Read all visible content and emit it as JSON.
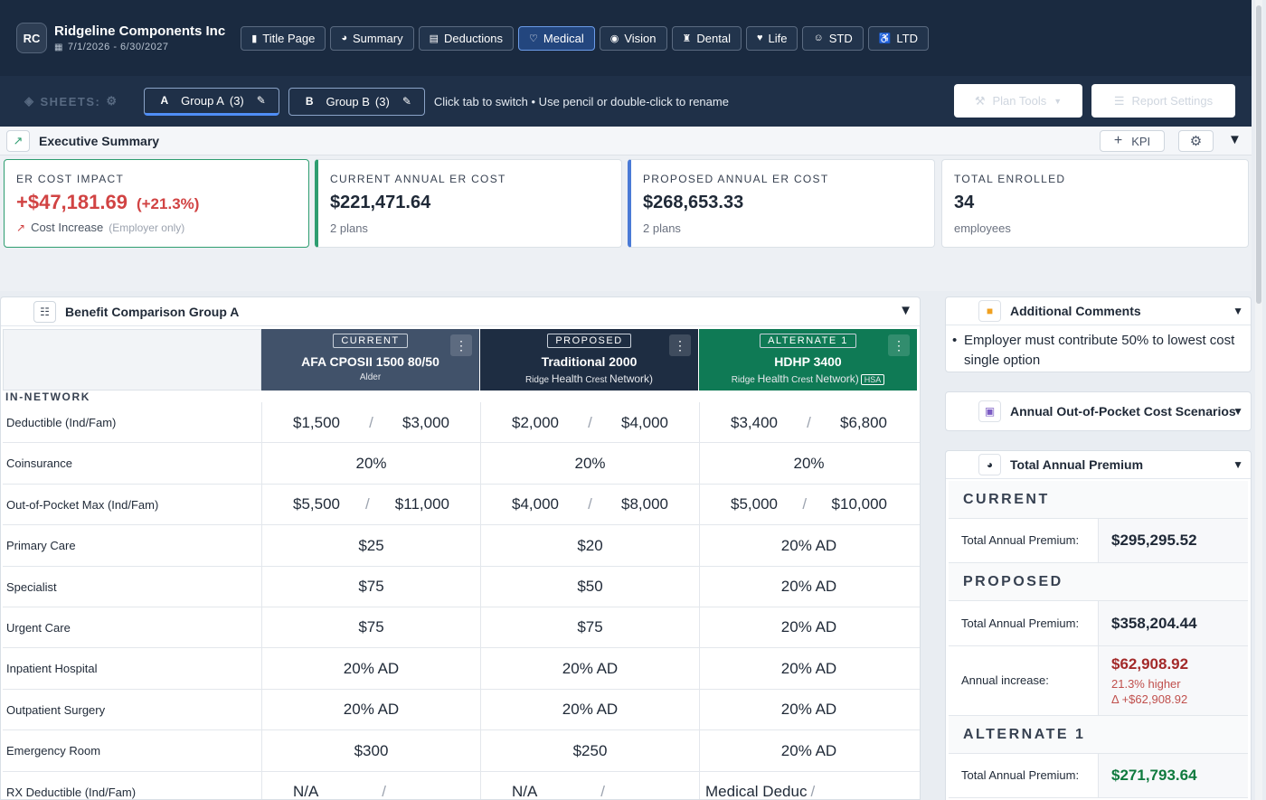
{
  "company": {
    "initials": "RC",
    "name": "Ridgeline Components Inc",
    "dates": "7/1/2026 - 6/30/2027"
  },
  "nav_tabs": [
    {
      "label": "Title Page",
      "icon": "document-icon"
    },
    {
      "label": "Summary",
      "icon": "pie-chart-icon"
    },
    {
      "label": "Deductions",
      "icon": "table-icon"
    },
    {
      "label": "Medical",
      "icon": "heart-pulse-icon"
    },
    {
      "label": "Vision",
      "icon": "eye-icon"
    },
    {
      "label": "Dental",
      "icon": "tooth-icon"
    },
    {
      "label": "Life",
      "icon": "heart-icon"
    },
    {
      "label": "STD",
      "icon": "person-icon"
    },
    {
      "label": "LTD",
      "icon": "wheelchair-icon"
    }
  ],
  "active_tab": "Medical",
  "sheets": {
    "label": "SHEETS:",
    "tabs": [
      {
        "letter": "A",
        "name": "Group A",
        "count": "(3)"
      },
      {
        "letter": "B",
        "name": "Group B",
        "count": "(3)"
      }
    ],
    "hint": "Click tab to switch • Use pencil or double-click to rename",
    "plan_tools": "Plan Tools",
    "report_settings": "Report Settings"
  },
  "executive_summary": {
    "title": "Executive Summary",
    "kpi_button": "KPI",
    "cards": [
      {
        "label": "ER COST IMPACT",
        "value": "+$47,181.69",
        "pct": "(+21.3%)",
        "sub": "Cost Increase",
        "note": "(Employer only)"
      },
      {
        "label": "CURRENT ANNUAL ER COST",
        "value": "$221,471.64",
        "sub": "2 plans"
      },
      {
        "label": "PROPOSED ANNUAL ER COST",
        "value": "$268,653.33",
        "sub": "2 plans"
      },
      {
        "label": "TOTAL ENROLLED",
        "value": "34",
        "sub": "employees"
      }
    ]
  },
  "benefit_comparison": {
    "title": "Benefit Comparison Group A",
    "plans": [
      {
        "badge": "CURRENT",
        "name": "AFA CPOSII 1500 80/50",
        "network": "Alder"
      },
      {
        "badge": "PROPOSED",
        "name": "Traditional 2000",
        "network_a": "Ridge",
        "network_b": "Health",
        "network_c": "Crest",
        "network_d": "Network)"
      },
      {
        "badge": "ALTERNATE 1",
        "name": "HDHP 3400",
        "network_a": "Ridge",
        "network_b": "Health",
        "network_c": "Crest",
        "network_d": "Network)",
        "hsa": "HSA"
      }
    ],
    "section": "IN-NETWORK",
    "rows": [
      {
        "label": "Deductible (Ind/Fam)",
        "split": true,
        "c1": [
          "$1,500",
          "$3,000"
        ],
        "c2": [
          "$2,000",
          "$4,000"
        ],
        "c3": [
          "$3,400",
          "$6,800"
        ]
      },
      {
        "label": "Coinsurance",
        "c1": "20%",
        "c2": "20%",
        "c3": "20%"
      },
      {
        "label": "Out-of-Pocket Max (Ind/Fam)",
        "split": true,
        "c1": [
          "$5,500",
          "$11,000"
        ],
        "c2": [
          "$4,000",
          "$8,000"
        ],
        "c3": [
          "$5,000",
          "$10,000"
        ]
      },
      {
        "label": "Primary Care",
        "c1": "$25",
        "c2": "$20",
        "c3": "20% AD"
      },
      {
        "label": "Specialist",
        "c1": "$75",
        "c2": "$50",
        "c3": "20% AD"
      },
      {
        "label": "Urgent Care",
        "c1": "$75",
        "c2": "$75",
        "c3": "20% AD"
      },
      {
        "label": "Inpatient Hospital",
        "c1": "20% AD",
        "c2": "20% AD",
        "c3": "20% AD"
      },
      {
        "label": "Outpatient Surgery",
        "c1": "20% AD",
        "c2": "20% AD",
        "c3": "20% AD"
      },
      {
        "label": "Emergency Room",
        "c1": "$300",
        "c2": "$250",
        "c3": "20% AD"
      },
      {
        "label": "RX Deductible (Ind/Fam)",
        "split": true,
        "c1": [
          "N/A",
          ""
        ],
        "c2": [
          "N/A",
          ""
        ],
        "c3": [
          "Medical Deduc",
          ""
        ]
      }
    ]
  },
  "comments": {
    "title": "Additional Comments",
    "items": [
      "Employer must contribute 50% to lowest cost single option"
    ]
  },
  "oop": {
    "title": "Annual Out-of-Pocket Cost Scenarios"
  },
  "premium": {
    "title": "Total Annual Premium",
    "current_label": "CURRENT",
    "current_row": "Total Annual Premium:",
    "current_value": "$295,295.52",
    "proposed_label": "PROPOSED",
    "proposed_row": "Total Annual Premium:",
    "proposed_value": "$358,204.44",
    "increase_row": "Annual increase:",
    "increase_value": "$62,908.92",
    "increase_pct": "21.3% higher",
    "increase_delta": "Δ +$62,908.92",
    "alt_label": "ALTERNATE 1",
    "alt_row": "Total Annual Premium:",
    "alt_value": "$271,793.64"
  }
}
